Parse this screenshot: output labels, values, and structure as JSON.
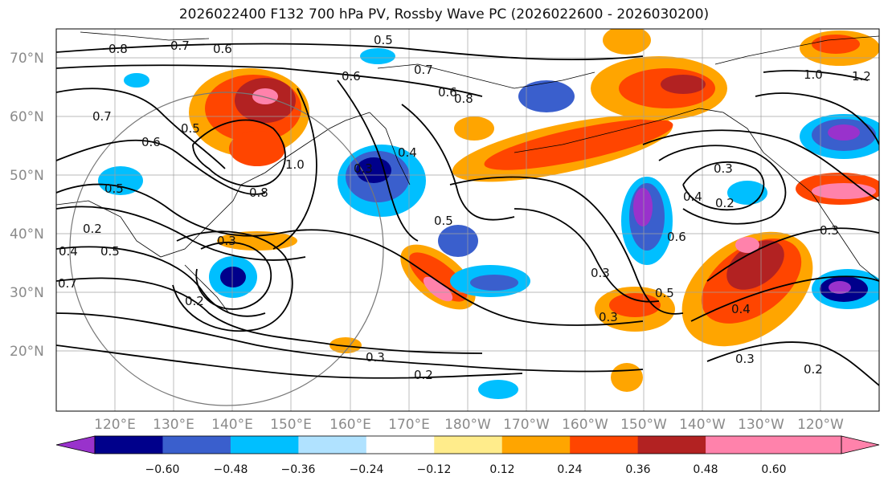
{
  "title": "2026022400 F132 700 hPa PV, Rossby Wave PC (2026022600 - 2026030200)",
  "lon_ticks": [
    "120°E",
    "130°E",
    "140°E",
    "150°E",
    "160°E",
    "170°E",
    "180°W",
    "170°W",
    "160°W",
    "150°W",
    "140°W",
    "130°W",
    "120°W"
  ],
  "lat_ticks": [
    "70°N",
    "60°N",
    "50°N",
    "40°N",
    "30°N",
    "20°N"
  ],
  "colorbar": {
    "labels": [
      "−0.60",
      "−0.48",
      "−0.36",
      "−0.24",
      "−0.12",
      "0.12",
      "0.24",
      "0.36",
      "0.48",
      "0.60"
    ],
    "colors": [
      "#9932cc",
      "#00008b",
      "#3a5fcd",
      "#00bfff",
      "#b0e2ff",
      "#ffffff",
      "#ffec8b",
      "#ffa500",
      "#ff4500",
      "#b22222",
      "#ff82ab",
      "#ff82ab"
    ]
  },
  "contour_labels": [
    "0.8",
    "0.7",
    "0.6",
    "0.5",
    "0.7",
    "0.6",
    "0.8",
    "0.7",
    "0.5",
    "0.6",
    "1.0",
    "0.8",
    "0.5",
    "0.3",
    "0.4",
    "0.3",
    "0.2",
    "0.3",
    "0.4",
    "0.5",
    "0.6",
    "0.5",
    "0.3",
    "0.3",
    "0.2",
    "0.6",
    "0.4",
    "0.3",
    "0.3",
    "0.2",
    "1.0",
    "1.2",
    "0.2",
    "0.5",
    "0.4",
    "0.3",
    "0.2",
    "0.7"
  ]
}
